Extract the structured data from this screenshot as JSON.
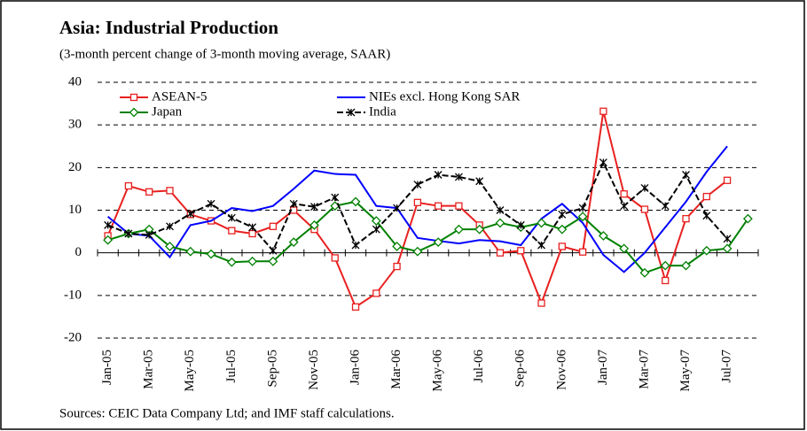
{
  "chart_data": {
    "type": "line",
    "title": "Asia: Industrial Production",
    "subtitle": "(3-month percent change of 3-month moving average, SAAR)",
    "source": "Sources: CEIC Data Company Ltd; and IMF staff calculations.",
    "categories": [
      "Jan-05",
      null,
      "Mar-05",
      null,
      "May-05",
      null,
      "Jul-05",
      null,
      "Sep-05",
      null,
      "Nov-05",
      null,
      "Jan-06",
      null,
      "Mar-06",
      null,
      "May-06",
      null,
      "Jul-06",
      null,
      "Sep-06",
      null,
      "Nov-06",
      null,
      "Jan-07",
      null,
      "Mar-07",
      null,
      "May-07",
      null,
      "Jul-07",
      null
    ],
    "ylim": [
      -20,
      40
    ],
    "yticks": [
      -20,
      -10,
      0,
      10,
      20,
      30,
      40
    ],
    "grid": true,
    "series": [
      {
        "name": "ASEAN-5",
        "color": "#e8201f",
        "marker": "square",
        "values": [
          4,
          15.7,
          14.3,
          14.6,
          9,
          7.5,
          5.2,
          4.5,
          6.2,
          10,
          5.5,
          -1.2,
          -12.7,
          -9.5,
          -3.2,
          11.8,
          11,
          11,
          6.5,
          0,
          0.5,
          -11.8,
          1.5,
          0.2,
          33.2,
          13.8,
          10.2,
          -6.5,
          8,
          13.2,
          17,
          null
        ]
      },
      {
        "name": "NIEs excl. Hong Kong SAR",
        "color": "#0000ff",
        "marker": "none",
        "values": [
          8.5,
          4.5,
          4,
          -1,
          6.5,
          7.5,
          10.5,
          9.8,
          11,
          15,
          19.3,
          18.5,
          18.3,
          11,
          10.5,
          3.5,
          2.8,
          2.2,
          3,
          2.7,
          1.8,
          8,
          11.5,
          7,
          -0.5,
          -4.5,
          0,
          6,
          12,
          19,
          25,
          null
        ]
      },
      {
        "name": "Japan",
        "color": "#008000",
        "marker": "diamond",
        "values": [
          3,
          4.5,
          5.5,
          1.5,
          0.3,
          -0.3,
          -2.2,
          -2,
          -2,
          2.5,
          6.5,
          11,
          12,
          7.5,
          1.5,
          0.3,
          2.5,
          5.5,
          5.5,
          7,
          6,
          7,
          5.5,
          8.5,
          4,
          1,
          -4.7,
          -3,
          -3,
          0.5,
          1,
          8
        ]
      },
      {
        "name": "India",
        "color": "#000000",
        "marker": "star",
        "dash": true,
        "values": [
          6.5,
          4.5,
          4.2,
          6.2,
          9.2,
          11.5,
          8.2,
          6,
          0.5,
          11.5,
          10.8,
          13,
          1.8,
          5.5,
          10.5,
          16,
          18.3,
          17.8,
          16.8,
          10,
          6.5,
          1.8,
          9,
          10.5,
          21.2,
          11,
          15.2,
          11,
          18.3,
          8.7,
          3.3,
          null
        ]
      }
    ]
  }
}
